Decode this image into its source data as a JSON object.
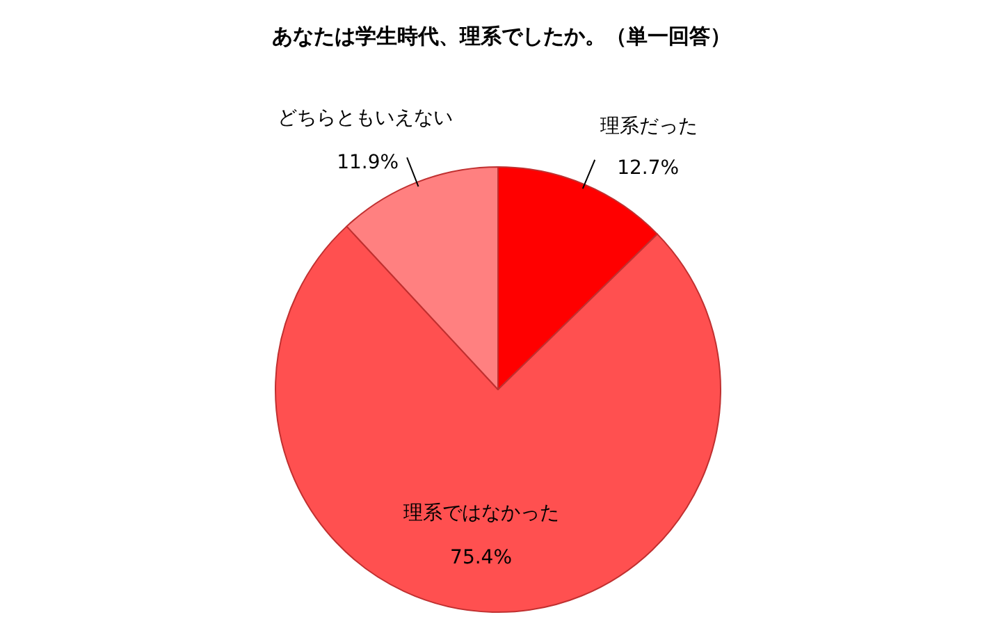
{
  "chart_data": {
    "type": "pie",
    "title": "あなたは学生時代、理系でしたか。（単一回答）",
    "categories": [
      "理系だった",
      "理系ではなかった",
      "どちらともいえない"
    ],
    "values": [
      12.7,
      75.4,
      11.9
    ],
    "colors": [
      "#ff0000",
      "#ff5050",
      "#ff8080"
    ],
    "value_labels": [
      "12.7%",
      "75.4%",
      "11.9%"
    ]
  }
}
